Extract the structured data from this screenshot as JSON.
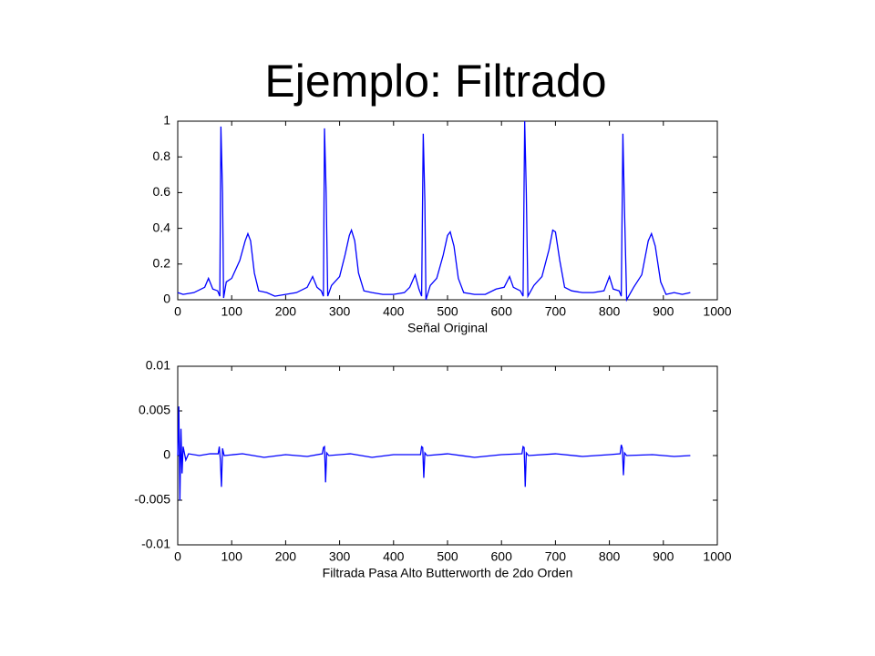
{
  "title": "Ejemplo: Filtrado",
  "chart_data": [
    {
      "type": "line",
      "color": "#0000ff",
      "xlabel": "Señal Original",
      "xlim": [
        0,
        1000
      ],
      "xticks": [
        0,
        100,
        200,
        300,
        400,
        500,
        600,
        700,
        800,
        900,
        1000
      ],
      "ylim": [
        0,
        1
      ],
      "yticks": [
        0,
        0.2,
        0.4,
        0.6,
        0.8,
        1
      ],
      "x": [
        0,
        10,
        30,
        50,
        57,
        65,
        74,
        78,
        80,
        83,
        85,
        90,
        100,
        115,
        125,
        130,
        135,
        142,
        150,
        165,
        180,
        200,
        220,
        240,
        250,
        258,
        266,
        270,
        272,
        275,
        278,
        285,
        300,
        310,
        318,
        322,
        328,
        335,
        345,
        360,
        380,
        400,
        420,
        430,
        440,
        447,
        452,
        455,
        458,
        460,
        468,
        480,
        492,
        500,
        505,
        512,
        520,
        530,
        550,
        570,
        590,
        605,
        615,
        622,
        635,
        640,
        643,
        646,
        649,
        660,
        675,
        688,
        695,
        700,
        708,
        717,
        730,
        750,
        770,
        790,
        800,
        807,
        818,
        822,
        825,
        828,
        832,
        845,
        860,
        872,
        878,
        885,
        895,
        905,
        920,
        935,
        950
      ],
      "values": [
        0.04,
        0.03,
        0.04,
        0.07,
        0.12,
        0.06,
        0.05,
        0.02,
        0.97,
        0.6,
        0.01,
        0.1,
        0.12,
        0.22,
        0.33,
        0.37,
        0.33,
        0.15,
        0.05,
        0.04,
        0.02,
        0.03,
        0.04,
        0.07,
        0.13,
        0.07,
        0.05,
        0.02,
        0.96,
        0.6,
        0.02,
        0.08,
        0.13,
        0.25,
        0.36,
        0.39,
        0.33,
        0.15,
        0.05,
        0.04,
        0.03,
        0.03,
        0.04,
        0.07,
        0.14,
        0.06,
        0.02,
        0.93,
        0.55,
        0.0,
        0.08,
        0.12,
        0.25,
        0.36,
        0.38,
        0.3,
        0.12,
        0.04,
        0.03,
        0.03,
        0.06,
        0.07,
        0.13,
        0.07,
        0.05,
        0.02,
        1.0,
        0.6,
        0.02,
        0.08,
        0.13,
        0.28,
        0.39,
        0.38,
        0.22,
        0.07,
        0.05,
        0.04,
        0.04,
        0.05,
        0.13,
        0.06,
        0.05,
        0.02,
        0.93,
        0.5,
        0.0,
        0.07,
        0.14,
        0.33,
        0.37,
        0.3,
        0.1,
        0.03,
        0.04,
        0.03,
        0.04
      ]
    },
    {
      "type": "line",
      "color": "#0000ff",
      "xlabel": "Filtrada Pasa Alto Butterworth de 2do Orden",
      "xlim": [
        0,
        1000
      ],
      "xticks": [
        0,
        100,
        200,
        300,
        400,
        500,
        600,
        700,
        800,
        900,
        1000
      ],
      "ylim": [
        -0.01,
        0.01
      ],
      "yticks": [
        -0.01,
        -0.005,
        0,
        0.005,
        0.01
      ],
      "x": [
        0,
        2,
        4,
        6,
        8,
        10,
        15,
        20,
        40,
        60,
        75,
        77,
        79,
        81,
        83,
        86,
        120,
        160,
        200,
        240,
        268,
        270,
        272,
        274,
        276,
        280,
        320,
        360,
        400,
        450,
        452,
        454,
        456,
        458,
        462,
        500,
        550,
        600,
        638,
        640,
        642,
        644,
        646,
        650,
        700,
        750,
        800,
        820,
        822,
        824,
        826,
        828,
        832,
        880,
        920,
        950
      ],
      "values": [
        0,
        0.0055,
        -0.005,
        0.003,
        -0.002,
        0.001,
        -0.0005,
        0.0002,
        0,
        0.0002,
        0.0002,
        0.001,
        -0.0005,
        -0.0035,
        0.0008,
        0,
        0.0002,
        -0.0002,
        0.0001,
        -0.0001,
        0.0002,
        0.0009,
        0.001,
        -0.003,
        0.0003,
        0,
        0.0002,
        -0.0002,
        0.0001,
        0.0001,
        0.001,
        0.0009,
        -0.0025,
        0.0003,
        0,
        0.0002,
        -0.0002,
        0.0001,
        0.0002,
        0.001,
        0.0009,
        -0.0035,
        0.0003,
        0,
        0.0002,
        -0.0001,
        0.0001,
        0.0002,
        0.0012,
        0.0008,
        -0.0022,
        0.0003,
        0,
        0.0001,
        -0.0001,
        0
      ]
    }
  ]
}
